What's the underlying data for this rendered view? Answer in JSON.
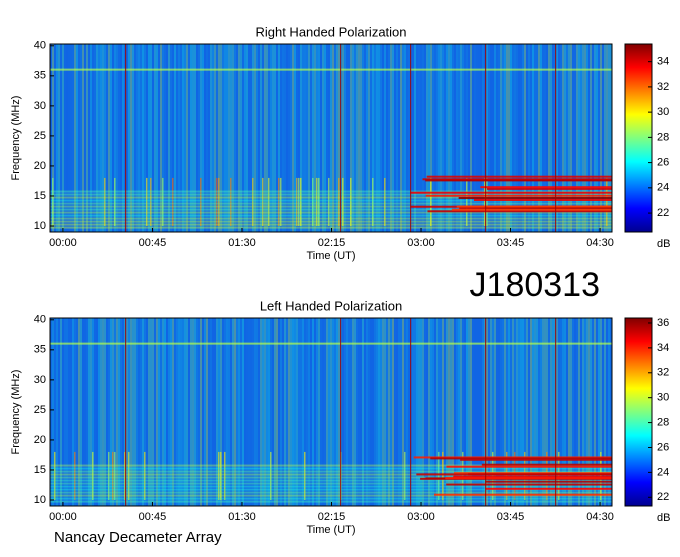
{
  "chart_data": [
    {
      "type": "spectrogram",
      "title": "Right Handed Polarization",
      "x_label": "Time (UT)",
      "y_label": "Frequency (MHz)",
      "xlim": [
        -6.5,
        276
      ],
      "xticks": [
        {
          "value": 0,
          "label": "00:00"
        },
        {
          "value": 45,
          "label": "00:45"
        },
        {
          "value": 90,
          "label": "01:30"
        },
        {
          "value": 135,
          "label": "02:15"
        },
        {
          "value": 180,
          "label": "03:00"
        },
        {
          "value": 225,
          "label": "03:45"
        },
        {
          "value": 270,
          "label": "04:30"
        }
      ],
      "ylim": [
        9,
        40.3
      ],
      "yticks": [
        10,
        15,
        20,
        25,
        30,
        35,
        40
      ],
      "colorbar_label": "dB",
      "colorbar_lim": [
        20.5,
        35.4
      ],
      "colorbar_ticks": [
        22,
        24,
        26,
        28,
        30,
        32,
        34
      ]
    },
    {
      "type": "spectrogram",
      "title": "Left Handed Polarization",
      "x_label": "Time (UT)",
      "y_label": "Frequency (MHz)",
      "xlim": [
        -6.5,
        276
      ],
      "xticks": [
        {
          "value": 0,
          "label": "00:00"
        },
        {
          "value": 45,
          "label": "00:45"
        },
        {
          "value": 90,
          "label": "01:30"
        },
        {
          "value": 135,
          "label": "02:15"
        },
        {
          "value": 180,
          "label": "03:00"
        },
        {
          "value": 225,
          "label": "03:45"
        },
        {
          "value": 270,
          "label": "04:30"
        }
      ],
      "ylim": [
        9,
        40.3
      ],
      "yticks": [
        10,
        15,
        20,
        25,
        30,
        35,
        40
      ],
      "colorbar_label": "dB",
      "colorbar_lim": [
        21.3,
        36.4
      ],
      "colorbar_ticks": [
        22,
        24,
        26,
        28,
        30,
        32,
        34,
        36
      ]
    }
  ],
  "date_label": "J180313",
  "footer": "Nancay Decameter Array"
}
